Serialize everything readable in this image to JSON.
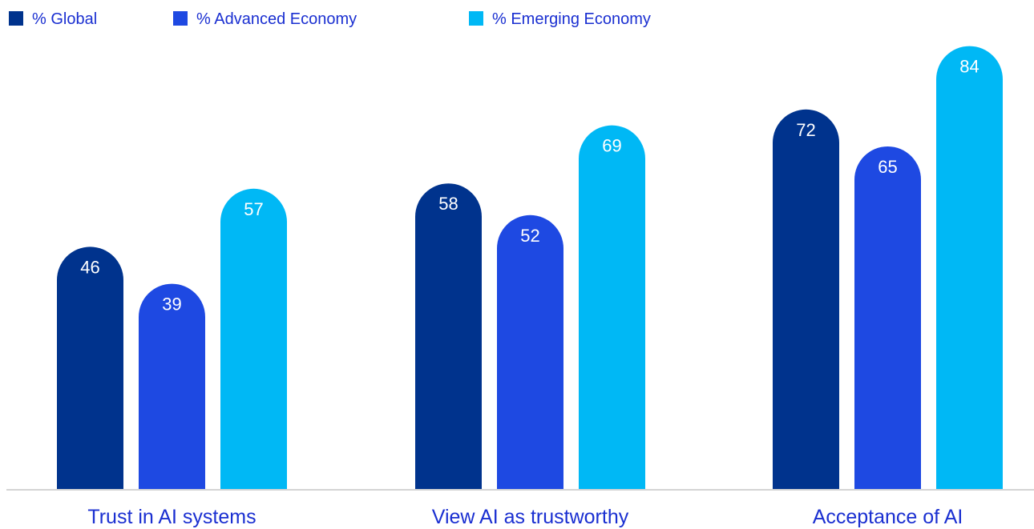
{
  "chart_data": {
    "type": "bar",
    "categories": [
      "Trust in AI systems",
      "View AI as trustworthy",
      "Acceptance of AI"
    ],
    "series": [
      {
        "name": "% Global",
        "values": [
          46,
          58,
          72
        ],
        "color": "#00338d"
      },
      {
        "name": "% Advanced Economy",
        "values": [
          39,
          52,
          65
        ],
        "color": "#1e49e2"
      },
      {
        "name": "% Emerging Economy",
        "values": [
          57,
          69,
          84
        ],
        "color": "#00b8f5"
      }
    ],
    "legend_position": "top-left",
    "grid": false,
    "ylim": [
      0,
      100
    ]
  }
}
